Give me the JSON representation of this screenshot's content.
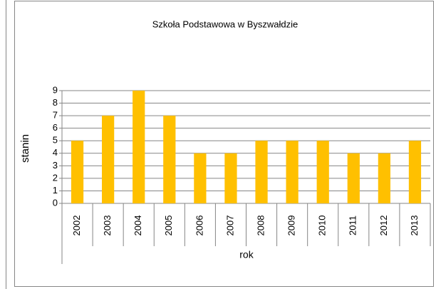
{
  "chart_data": {
    "type": "bar",
    "title": "Szkoła Podstawowa w Byszwałdzie",
    "x_label": "rok",
    "y_label": "stanin",
    "categories": [
      "2002",
      "2003",
      "2004",
      "2005",
      "2006",
      "2007",
      "2008",
      "2009",
      "2010",
      "2011",
      "2012",
      "2013"
    ],
    "values": [
      5,
      7,
      9,
      7,
      4,
      4,
      5,
      5,
      5,
      4,
      4,
      5
    ],
    "color": "#ffc000",
    "ylim": [
      0,
      9
    ],
    "yticks": [
      0,
      1,
      2,
      3,
      4,
      5,
      6,
      7,
      8,
      9
    ],
    "grid": true
  }
}
